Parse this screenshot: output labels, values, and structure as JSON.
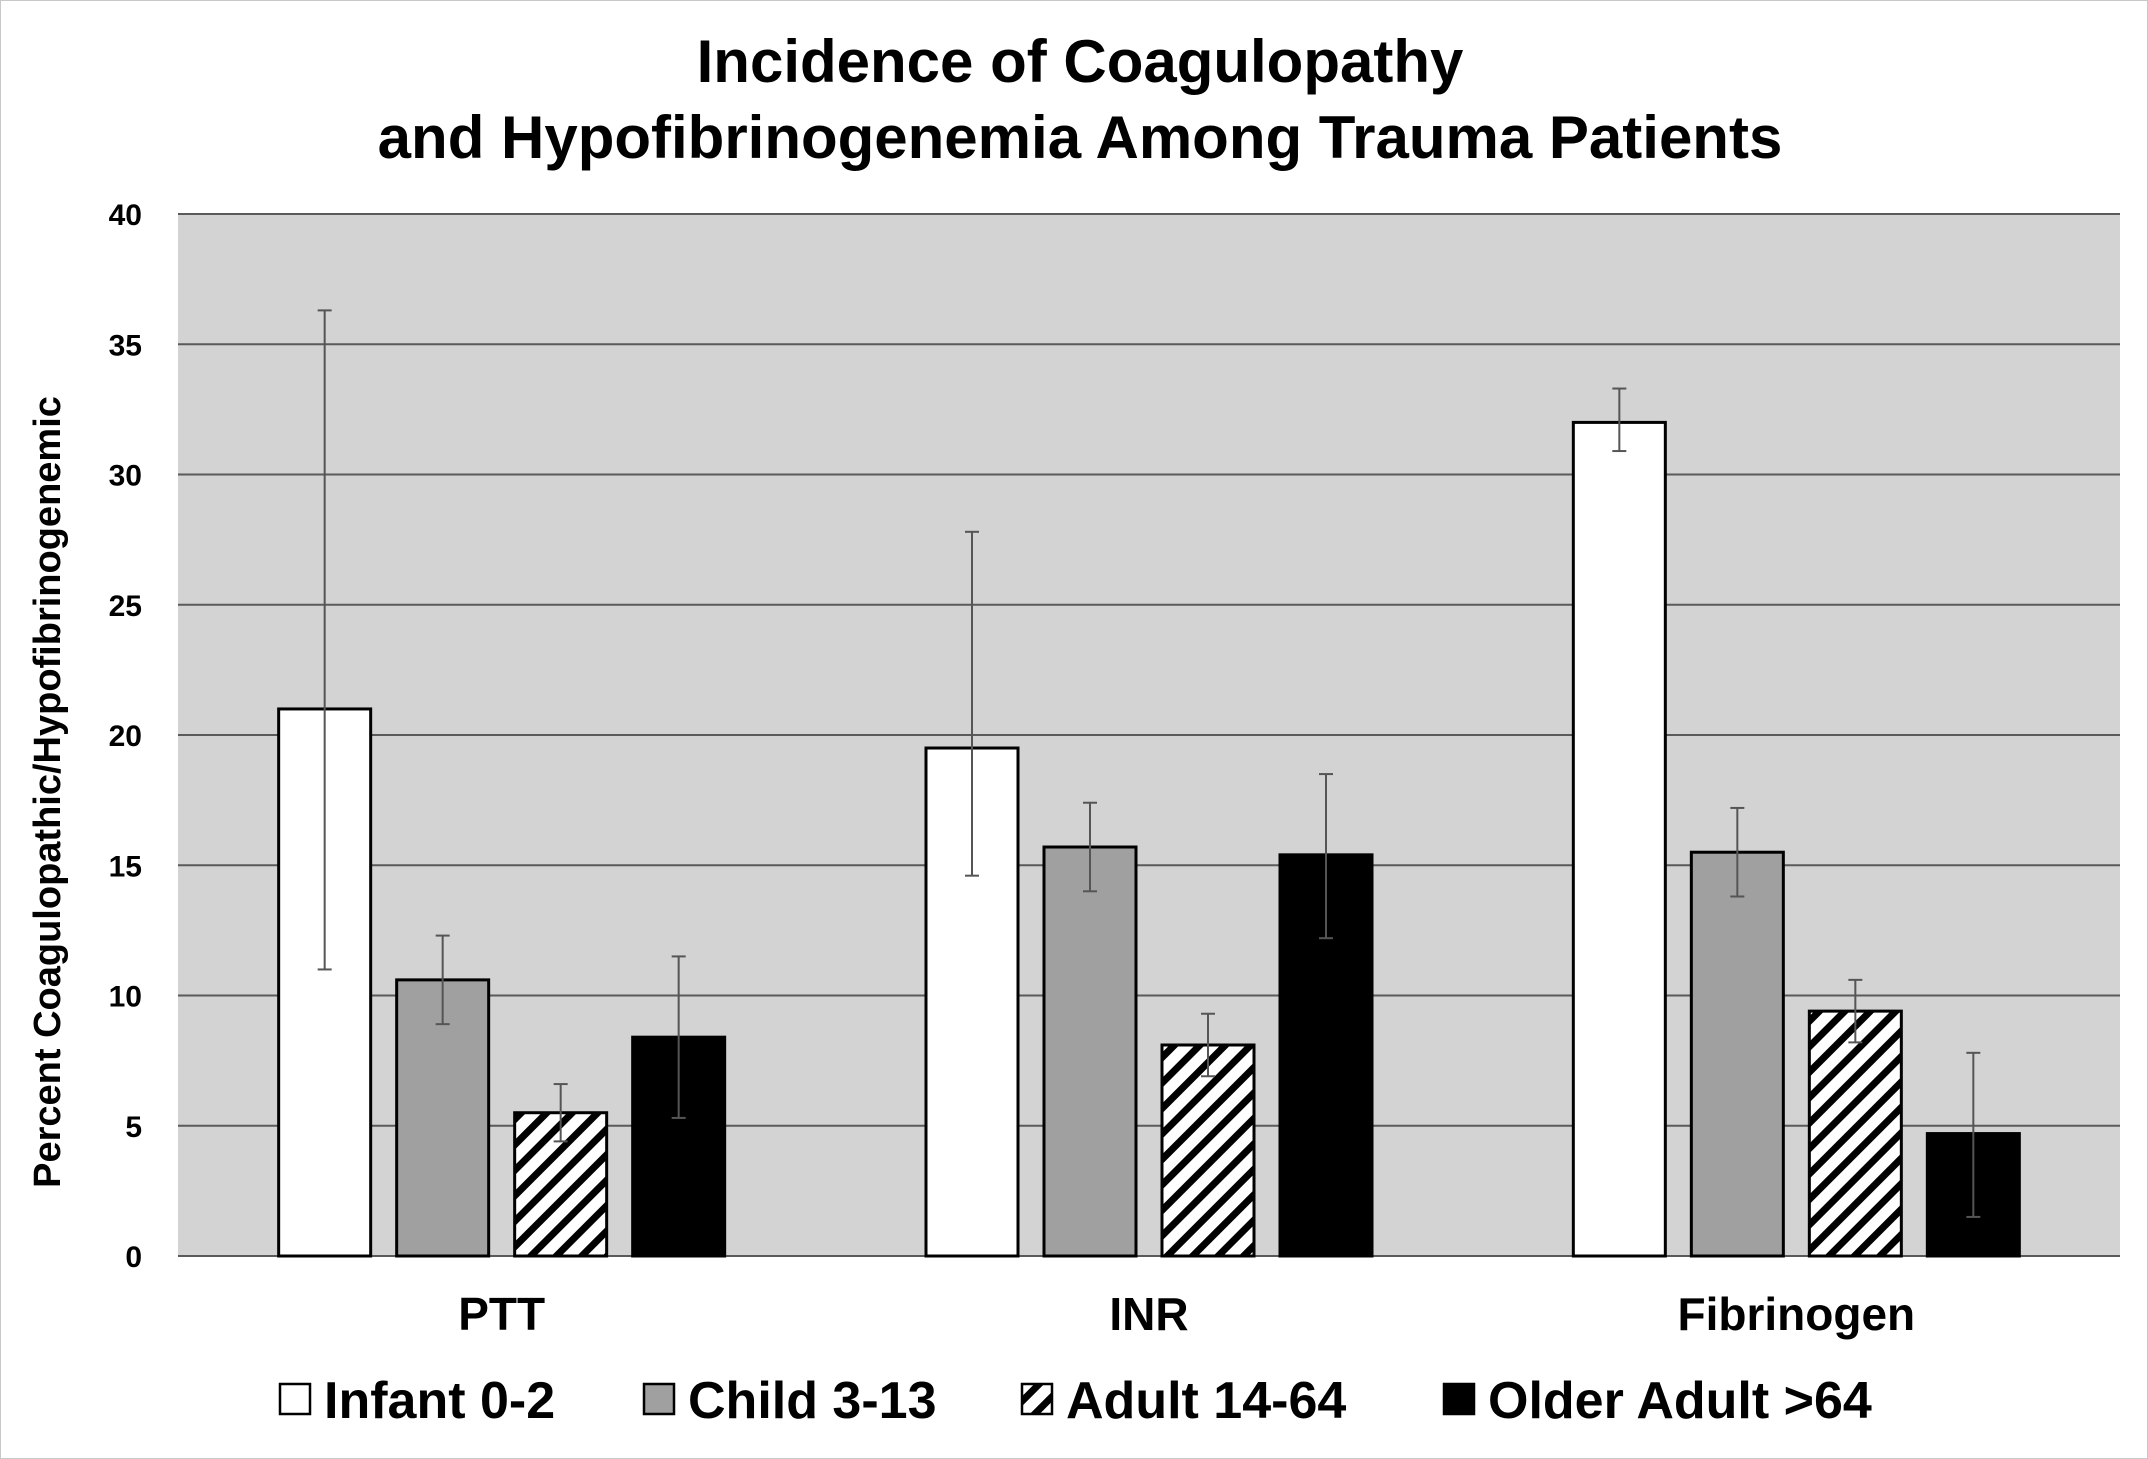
{
  "chart_data": {
    "type": "bar",
    "title": [
      "Incidence of Coagulopathy",
      "and Hypofibrinogenemia Among Trauma Patients"
    ],
    "xlabel": "",
    "ylabel": "Percent Coagulopathic/Hypofibrinogenemic",
    "ylim": [
      0,
      40
    ],
    "yticks": [
      0,
      5,
      10,
      15,
      20,
      25,
      30,
      35,
      40
    ],
    "grid": "horizontal",
    "legend_position": "bottom",
    "categories": [
      "PTT",
      "INR",
      "Fibrinogen"
    ],
    "series": [
      {
        "name": "Infant 0-2",
        "style": "white",
        "values": [
          21.0,
          19.5,
          32.0
        ],
        "error_low": [
          11.0,
          14.6,
          30.9
        ],
        "error_high": [
          36.3,
          27.8,
          33.3
        ]
      },
      {
        "name": "Child 3-13",
        "style": "gray",
        "values": [
          10.6,
          15.7,
          15.5
        ],
        "error_low": [
          8.9,
          14.0,
          13.8
        ],
        "error_high": [
          12.3,
          17.4,
          17.2
        ]
      },
      {
        "name": "Adult 14-64",
        "style": "hatched",
        "values": [
          5.5,
          8.1,
          9.4
        ],
        "error_low": [
          4.4,
          6.9,
          8.2
        ],
        "error_high": [
          6.6,
          9.3,
          10.6
        ]
      },
      {
        "name": "Older Adult >64",
        "style": "black",
        "values": [
          8.4,
          15.4,
          4.7
        ],
        "error_low": [
          5.3,
          12.2,
          1.5
        ],
        "error_high": [
          11.5,
          18.5,
          7.8
        ]
      }
    ],
    "colors": {
      "plot_background": "#d3d3d3",
      "gridline": "#5a5a5a",
      "white": "#ffffff",
      "gray": "#a0a0a0",
      "black": "#000000",
      "errorbar": "#555555"
    }
  }
}
